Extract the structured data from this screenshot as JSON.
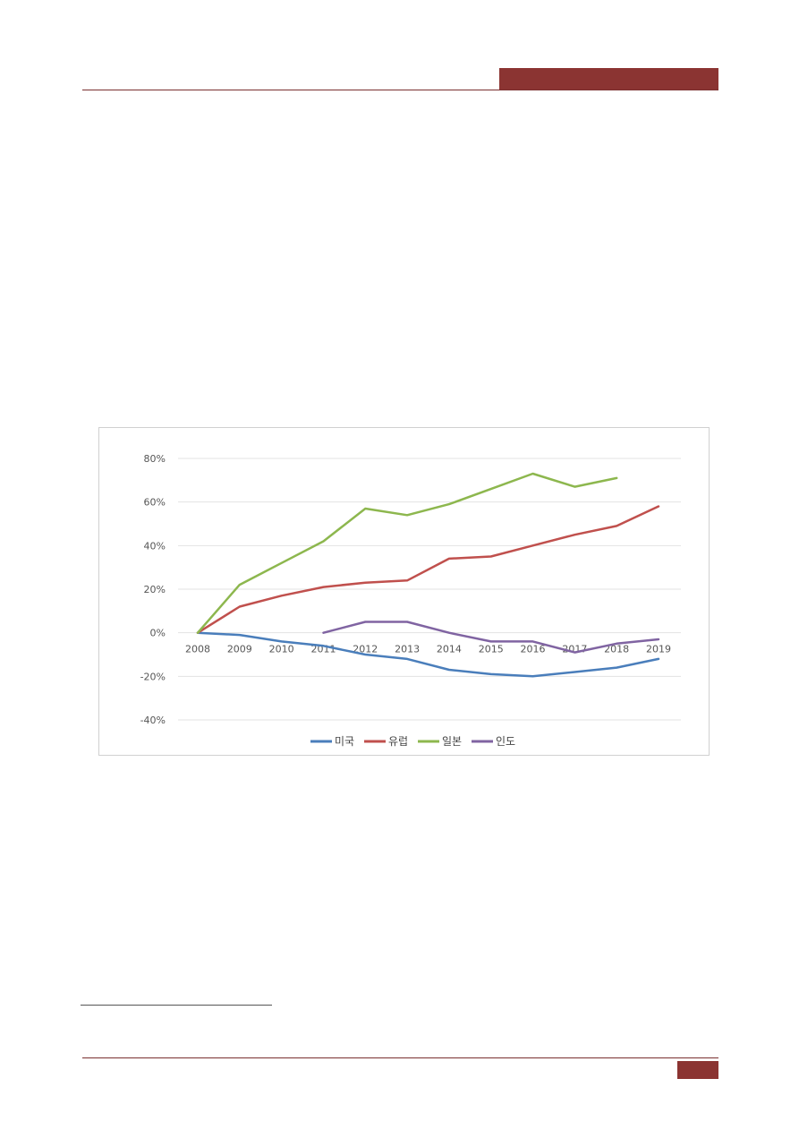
{
  "chart_data": {
    "type": "line",
    "categories": [
      "2008",
      "2009",
      "2010",
      "2011",
      "2012",
      "2013",
      "2014",
      "2015",
      "2016",
      "2017",
      "2018",
      "2019"
    ],
    "ylim": [
      -40,
      80
    ],
    "yticks": [
      80,
      60,
      40,
      20,
      0,
      -20,
      -40
    ],
    "ytick_labels": [
      "80%",
      "60%",
      "40%",
      "20%",
      "0%",
      "-20%",
      "-40%"
    ],
    "grid": true,
    "legend_position": "bottom",
    "series": [
      {
        "name": "미국",
        "color": "#4a7ebb",
        "values": [
          0,
          -1,
          -4,
          -6,
          -10,
          -12,
          -17,
          -19,
          -20,
          -18,
          -16,
          -12
        ]
      },
      {
        "name": "유럽",
        "color": "#c0504d",
        "values": [
          0,
          12,
          17,
          21,
          23,
          24,
          34,
          35,
          40,
          45,
          49,
          58
        ]
      },
      {
        "name": "일본",
        "color": "#8db74e",
        "values": [
          0,
          22,
          32,
          42,
          57,
          54,
          59,
          66,
          73,
          67,
          71,
          null
        ]
      },
      {
        "name": "인도",
        "color": "#8064a2",
        "values": [
          null,
          null,
          null,
          0,
          5,
          5,
          0,
          -4,
          -4,
          -9,
          -5,
          -3
        ]
      }
    ]
  }
}
